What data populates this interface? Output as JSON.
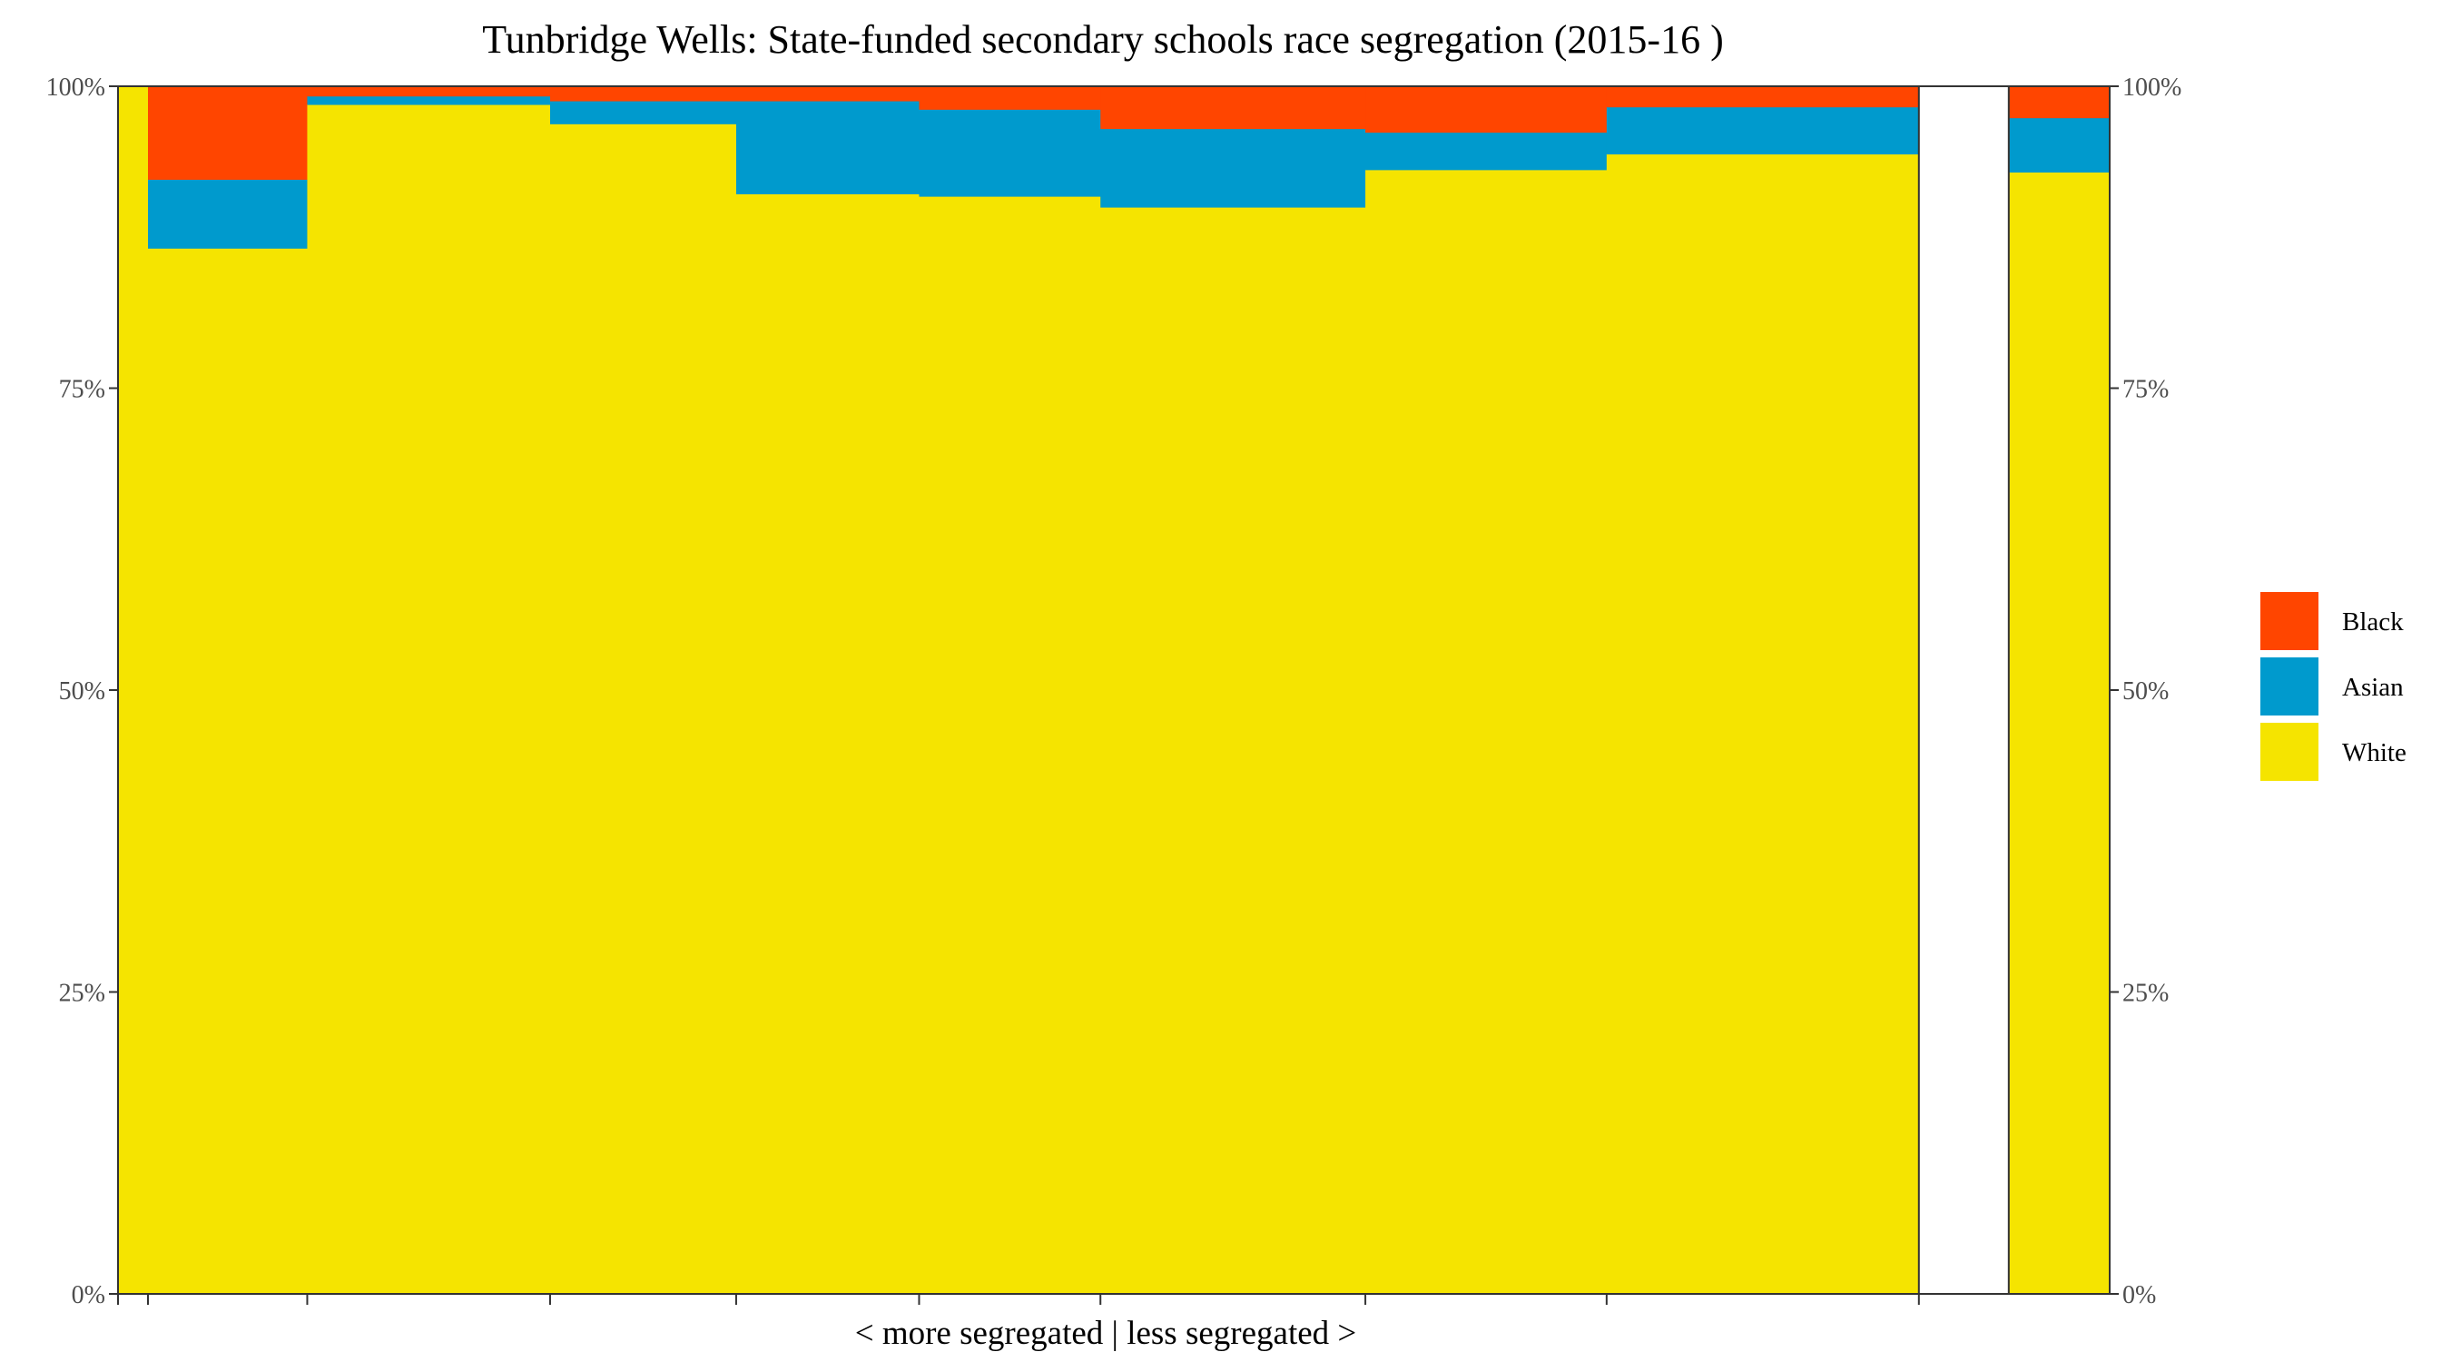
{
  "chart_data": {
    "type": "bar",
    "title": "Tunbridge Wells: State-funded secondary schools race segregation (2015-16 )",
    "xlabel": "< more segregated | less segregated >",
    "ylabel": "",
    "ylim": [
      0,
      1
    ],
    "y_ticks": [
      "0%",
      "25%",
      "50%",
      "75%",
      "100%"
    ],
    "y_ticks_right": [
      "0%",
      "25%",
      "50%",
      "75%",
      "100%"
    ],
    "x_extent": [
      0,
      1263
    ],
    "legend": {
      "position": "right",
      "entries": [
        {
          "name": "Black",
          "color": "#FF4500"
        },
        {
          "name": "Asian",
          "color": "#009ACD"
        },
        {
          "name": "White",
          "color": "#F5E400"
        }
      ]
    },
    "colors": {
      "Black": "#FF4500",
      "Asian": "#009ACD",
      "White": "#F5E400"
    },
    "schools": [
      {
        "x0": 0,
        "x1": 19,
        "white": 1.0,
        "asian": 0.0,
        "black": 0.0
      },
      {
        "x0": 19,
        "x1": 120,
        "white": 0.866,
        "asian": 0.057,
        "black": 0.077
      },
      {
        "x0": 120,
        "x1": 274,
        "white": 0.985,
        "asian": 0.007,
        "black": 0.008
      },
      {
        "x0": 274,
        "x1": 392,
        "white": 0.969,
        "asian": 0.019,
        "black": 0.012
      },
      {
        "x0": 392,
        "x1": 508,
        "white": 0.911,
        "asian": 0.077,
        "black": 0.012
      },
      {
        "x0": 508,
        "x1": 623,
        "white": 0.909,
        "asian": 0.072,
        "black": 0.019
      },
      {
        "x0": 623,
        "x1": 791,
        "white": 0.9,
        "asian": 0.065,
        "black": 0.035
      },
      {
        "x0": 791,
        "x1": 944,
        "white": 0.931,
        "asian": 0.031,
        "black": 0.038
      },
      {
        "x0": 944,
        "x1": 1142,
        "white": 0.944,
        "asian": 0.039,
        "black": 0.017
      },
      {
        "x0": 1142,
        "x1": 1199,
        "white": 0.0,
        "asian": 0.0,
        "black": 0.0
      },
      {
        "x0": 1199,
        "x1": 1263,
        "white": 0.929,
        "asian": 0.045,
        "black": 0.026
      }
    ],
    "x_ticks": [
      0,
      19,
      120,
      274,
      392,
      508,
      623,
      791,
      944,
      1142
    ]
  }
}
